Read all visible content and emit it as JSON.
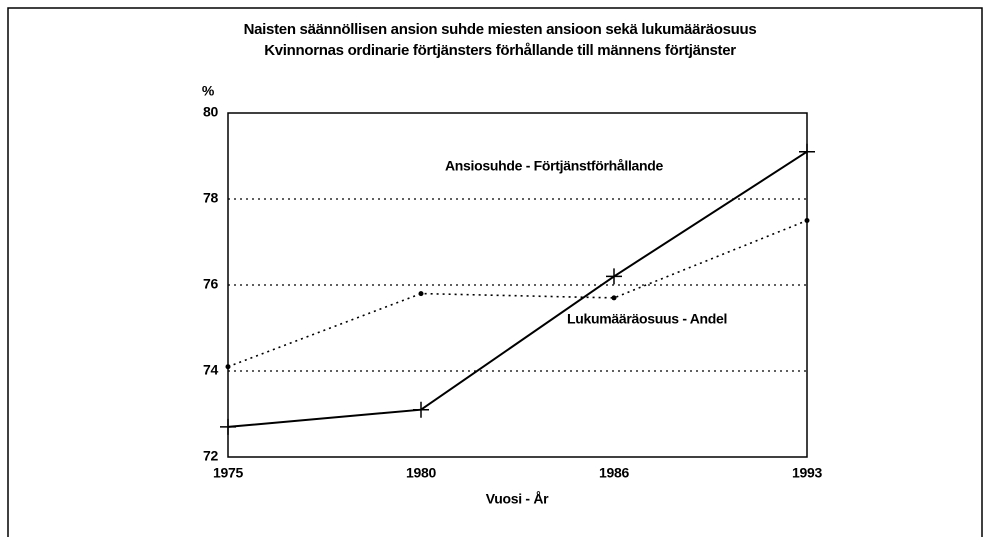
{
  "chart_data": {
    "type": "line",
    "title": [
      "Naisten säännöllisen ansion suhde miesten ansioon sekä lukumääräosuus",
      "Kvinnornas ordinarie förtjänsters förhållande till männens förtjänster"
    ],
    "ylabel": "%",
    "xlabel": "Vuosi - År",
    "categories": [
      "1975",
      "1980",
      "1986",
      "1993"
    ],
    "series": [
      {
        "name": "Ansiosuhde - Förtjänstförhållande",
        "color": "#000000",
        "style": "solid",
        "marker": "plus",
        "values": [
          72.7,
          73.1,
          76.2,
          79.1
        ]
      },
      {
        "name": "Lukumääräosuus - Andel",
        "color": "#000000",
        "style": "dotted",
        "marker": "dot",
        "values": [
          74.1,
          75.8,
          75.7,
          77.5
        ]
      }
    ],
    "ylim": [
      72,
      80
    ],
    "yticks": [
      72,
      74,
      76,
      78,
      80
    ],
    "grid": true
  }
}
